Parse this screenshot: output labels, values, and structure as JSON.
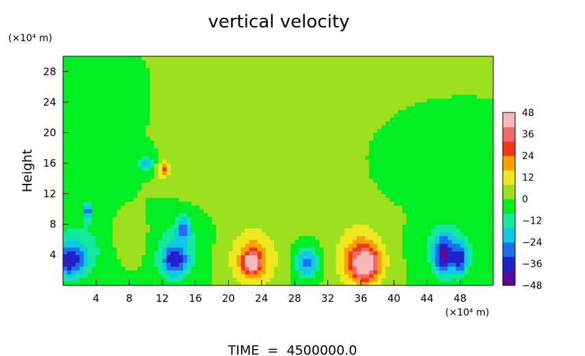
{
  "chart_data": {
    "type": "heatmap",
    "title": "vertical velocity",
    "ylabel": "Height",
    "xlabel": "",
    "x_unit_label": "(×10⁴ m)",
    "y_unit_label": "(×10⁴ m)",
    "footer": "TIME  =  4500000.0",
    "xlim": [
      0,
      52
    ],
    "ylim": [
      0,
      30
    ],
    "x_ticks": [
      4,
      8,
      12,
      16,
      20,
      24,
      28,
      32,
      36,
      40,
      44,
      48
    ],
    "y_ticks": [
      4,
      8,
      12,
      16,
      20,
      24,
      28
    ],
    "colorbar": {
      "min": -48,
      "max": 48,
      "ticks": [
        48,
        36,
        24,
        12,
        0,
        -12,
        -24,
        -36,
        -48
      ],
      "colors": [
        "#5a0a9a",
        "#2222cc",
        "#1e6ef0",
        "#10c8e8",
        "#14e8a0",
        "#00ee22",
        "#9ce01e",
        "#f0e81e",
        "#ffa000",
        "#f03814",
        "#f06a6a",
        "#f8b8b8"
      ]
    },
    "background_value": 0,
    "features": [
      {
        "x": 0.8,
        "y": 3.2,
        "sx": 1.8,
        "sy": 2.0,
        "value": -32
      },
      {
        "x": 2.0,
        "y": 5.0,
        "sx": 4.0,
        "sy": 4.0,
        "value": -12
      },
      {
        "x": 3.0,
        "y": 9.8,
        "sx": 0.5,
        "sy": 1.2,
        "value": -28
      },
      {
        "x": 10.0,
        "y": 16.0,
        "sx": 0.8,
        "sy": 1.2,
        "value": -22
      },
      {
        "x": 12.2,
        "y": 15.2,
        "sx": 0.6,
        "sy": 1.2,
        "value": 26
      },
      {
        "x": 13.5,
        "y": 3.2,
        "sx": 1.6,
        "sy": 2.0,
        "value": -30
      },
      {
        "x": 14.6,
        "y": 7.5,
        "sx": 0.8,
        "sy": 1.6,
        "value": -24
      },
      {
        "x": 13.5,
        "y": 5.0,
        "sx": 3.0,
        "sy": 4.0,
        "value": -12
      },
      {
        "x": 23.0,
        "y": 3.5,
        "sx": 2.8,
        "sy": 3.8,
        "value": 22
      },
      {
        "x": 22.8,
        "y": 3.0,
        "sx": 1.0,
        "sy": 1.4,
        "value": 36
      },
      {
        "x": 29.5,
        "y": 3.0,
        "sx": 1.3,
        "sy": 2.0,
        "value": -28
      },
      {
        "x": 36.0,
        "y": 3.5,
        "sx": 3.0,
        "sy": 4.0,
        "value": 24
      },
      {
        "x": 36.5,
        "y": 2.8,
        "sx": 1.5,
        "sy": 1.8,
        "value": 40
      },
      {
        "x": 46.0,
        "y": 4.0,
        "sx": 1.1,
        "sy": 2.5,
        "value": -34
      },
      {
        "x": 48.0,
        "y": 3.5,
        "sx": 0.9,
        "sy": 2.0,
        "value": -30
      },
      {
        "x": 46.5,
        "y": 5.0,
        "sx": 3.5,
        "sy": 4.0,
        "value": -12
      },
      {
        "x": 4.0,
        "y": 15.0,
        "sx": 3.0,
        "sy": 3.0,
        "value": -8
      },
      {
        "x": 20.0,
        "y": 14.0,
        "sx": 6.0,
        "sy": 3.0,
        "value": 6
      },
      {
        "x": 32.0,
        "y": 12.0,
        "sx": 8.0,
        "sy": 4.0,
        "value": 5
      },
      {
        "x": 42.0,
        "y": 14.0,
        "sx": 5.0,
        "sy": 3.0,
        "value": -6
      },
      {
        "x": 8.0,
        "y": 6.0,
        "sx": 3.0,
        "sy": 3.0,
        "value": 6
      }
    ]
  }
}
